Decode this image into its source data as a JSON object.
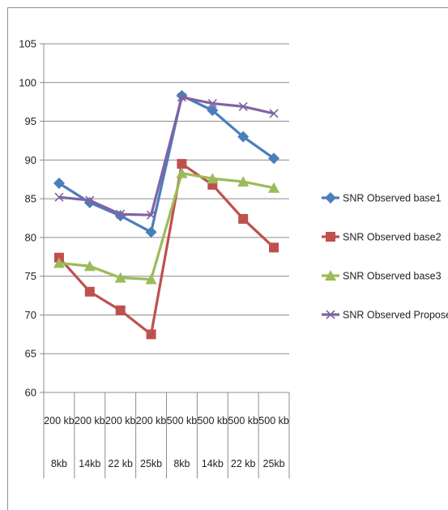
{
  "chart_data": {
    "type": "line",
    "title": "",
    "xlabel": "",
    "ylabel": "",
    "ylim": [
      60,
      105
    ],
    "yticks": [
      60,
      65,
      70,
      75,
      80,
      85,
      90,
      95,
      100,
      105
    ],
    "grid": "horizontal",
    "legend_position": "right",
    "categories": [
      [
        "200 kb",
        "8kb"
      ],
      [
        "200 kb",
        "14kb"
      ],
      [
        "200 kb",
        "22 kb"
      ],
      [
        "200 kb",
        "25kb"
      ],
      [
        "500 kb",
        "8kb"
      ],
      [
        "500 kb",
        "14kb"
      ],
      [
        "500 kb",
        "22 kb"
      ],
      [
        "500 kb",
        "25kb"
      ]
    ],
    "series": [
      {
        "name": "SNR Observed base1",
        "color": "#4a7ebb",
        "marker": "diamond",
        "values": [
          87.0,
          84.5,
          82.8,
          80.7,
          98.3,
          96.4,
          93.0,
          90.2
        ]
      },
      {
        "name": "SNR Observed base2",
        "color": "#c0504d",
        "marker": "square",
        "values": [
          77.4,
          73.0,
          70.6,
          67.5,
          89.5,
          86.8,
          82.4,
          78.7
        ]
      },
      {
        "name": "SNR Observed base3",
        "color": "#9bbb59",
        "marker": "triangle",
        "values": [
          76.7,
          76.3,
          74.8,
          74.6,
          88.3,
          87.6,
          87.2,
          86.4
        ]
      },
      {
        "name": "SNR Observed Proposed",
        "color": "#8064a2",
        "marker": "x",
        "values": [
          85.2,
          84.8,
          83.0,
          82.9,
          98.1,
          97.3,
          96.9,
          96.0
        ]
      }
    ]
  }
}
